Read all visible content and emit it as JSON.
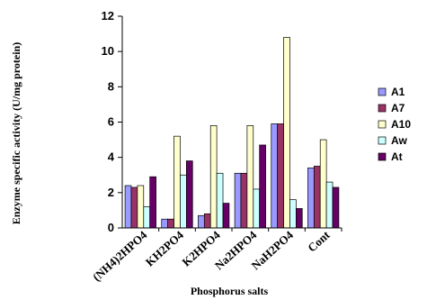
{
  "chart_data": {
    "type": "bar",
    "title": "",
    "xlabel": "Phosphorus salts",
    "ylabel": "Enzyme specific activity (U/mg protein)",
    "ylim": [
      0,
      12
    ],
    "yticks": [
      0,
      2,
      4,
      6,
      8,
      10,
      12
    ],
    "grid": false,
    "legend_position": "right",
    "categories": [
      "(NH4)2HPO4",
      "KH2PO4",
      "K2HPO4",
      "Na2HPO4",
      "NaH2PO4",
      "Cont"
    ],
    "series": [
      {
        "name": "A1",
        "color": "#9999ff",
        "values": [
          2.4,
          0.5,
          0.7,
          3.1,
          5.9,
          3.4
        ]
      },
      {
        "name": "A7",
        "color": "#993366",
        "values": [
          2.3,
          0.5,
          0.8,
          3.1,
          5.9,
          3.5
        ]
      },
      {
        "name": "A10",
        "color": "#ffffcc",
        "values": [
          2.4,
          5.2,
          5.8,
          5.8,
          10.8,
          5.0
        ]
      },
      {
        "name": "Aw",
        "color": "#ccffff",
        "values": [
          1.2,
          3.0,
          3.1,
          2.2,
          1.6,
          2.6
        ]
      },
      {
        "name": "At",
        "color": "#660066",
        "values": [
          2.9,
          3.8,
          1.4,
          4.7,
          1.1,
          2.3
        ]
      }
    ]
  }
}
